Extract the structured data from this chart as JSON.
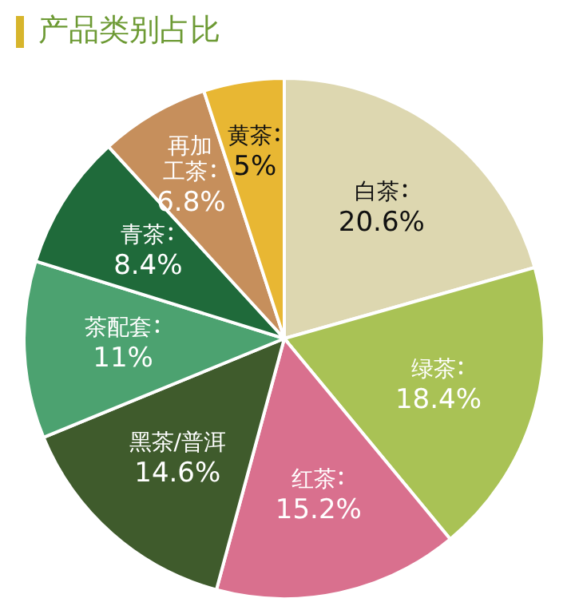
{
  "chart_data": {
    "type": "pie",
    "title": "产品类别占比",
    "categories": [
      "白茶",
      "绿茶",
      "红茶",
      "黑茶/普洱",
      "茶配套",
      "青茶",
      "再加工茶",
      "黄茶"
    ],
    "values": [
      20.6,
      18.4,
      15.2,
      14.6,
      11,
      8.4,
      6.8,
      5
    ],
    "value_labels": [
      "20.6%",
      "18.4%",
      "15.2%",
      "14.6%",
      "11%",
      "8.4%",
      "6.8%",
      "5%"
    ],
    "colors": [
      "#ddd7b0",
      "#a9c255",
      "#d9708e",
      "#3f5b2c",
      "#4ca270",
      "#1f6a3a",
      "#c68f5c",
      "#e8b733"
    ]
  }
}
